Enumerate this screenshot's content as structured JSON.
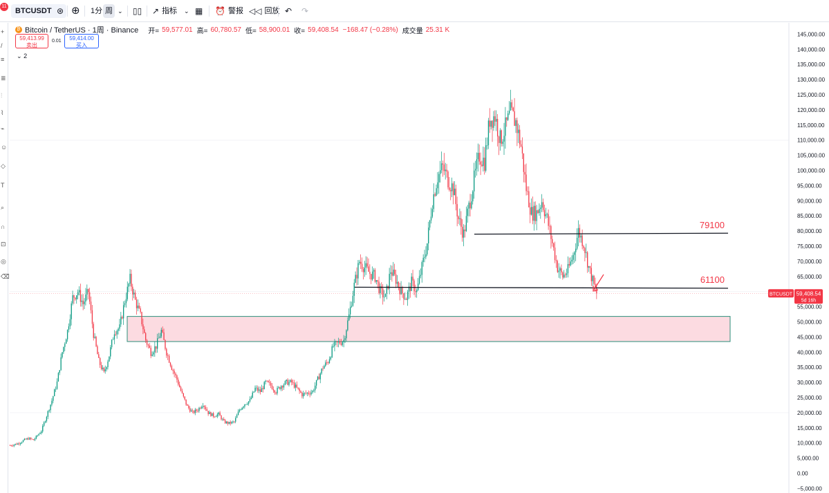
{
  "toolbar": {
    "notification_count": "11",
    "symbol": "BTCUSDT",
    "interval_1": "1分",
    "interval_2": "周",
    "indicators": "指标",
    "alert": "警报",
    "replay": "回放"
  },
  "legend": {
    "symbol_name": "Bitcoin / TetherUS · 1周 · Binance",
    "open_label": "开=",
    "open": "59,577.01",
    "high_label": "高=",
    "high": "60,780.57",
    "low_label": "低=",
    "low": "58,900.01",
    "close_label": "收=",
    "close": "59,408.54",
    "change": "−168.47 (−0.28%)",
    "volume_label": "成交量",
    "volume": "25.31 K"
  },
  "trade": {
    "sell_price": "59,413.99",
    "sell_label": "卖出",
    "spread": "0.01",
    "buy_price": "59,414.00",
    "buy_label": "买入"
  },
  "indicators_toggle": "2",
  "colors": {
    "up": "#089981",
    "down": "#f23645",
    "zone_fill": "#fcd7de",
    "zone_border": "#2b8f7a",
    "line": "#131722",
    "annotation": "#f23645"
  },
  "chart_data": {
    "type": "candlestick",
    "yaxis_ticks": [
      -5000,
      0,
      5000,
      10000,
      15000,
      20000,
      25000,
      30000,
      35000,
      40000,
      45000,
      50000,
      55000,
      60000,
      65000,
      70000,
      75000,
      80000,
      85000,
      90000,
      95000,
      100000,
      105000,
      110000,
      115000,
      120000,
      125000,
      130000,
      135000,
      140000,
      145000,
      150000
    ],
    "ylim": [
      -5500,
      152000
    ],
    "last_price": "59,408.54",
    "last_price_symbol": "BTCUSDT",
    "bar_countdown": "5d 16h",
    "levels": [
      {
        "label": "79100",
        "value": 79100
      },
      {
        "label": "61100",
        "value": 61100
      }
    ],
    "zone": {
      "low": 43500,
      "high": 51800
    },
    "price_path": [
      [
        0,
        9200
      ],
      [
        6,
        9800
      ],
      [
        10,
        10800
      ],
      [
        14,
        11500
      ],
      [
        18,
        11000
      ],
      [
        24,
        14000
      ],
      [
        28,
        19000
      ],
      [
        32,
        24000
      ],
      [
        36,
        30000
      ],
      [
        40,
        40000
      ],
      [
        44,
        47000
      ],
      [
        48,
        58000
      ],
      [
        52,
        60000
      ],
      [
        56,
        56000
      ],
      [
        60,
        60000
      ],
      [
        64,
        46000
      ],
      [
        68,
        37000
      ],
      [
        72,
        33000
      ],
      [
        76,
        39000
      ],
      [
        80,
        47000
      ],
      [
        84,
        48000
      ],
      [
        88,
        57000
      ],
      [
        92,
        64000
      ],
      [
        96,
        57000
      ],
      [
        100,
        52000
      ],
      [
        104,
        44000
      ],
      [
        108,
        40000
      ],
      [
        112,
        42000
      ],
      [
        116,
        47000
      ],
      [
        120,
        40000
      ],
      [
        124,
        35000
      ],
      [
        128,
        31000
      ],
      [
        132,
        26000
      ],
      [
        136,
        22000
      ],
      [
        140,
        20000
      ],
      [
        144,
        21000
      ],
      [
        148,
        23000
      ],
      [
        152,
        20000
      ],
      [
        156,
        19000
      ],
      [
        160,
        19500
      ],
      [
        164,
        17000
      ],
      [
        168,
        16500
      ],
      [
        172,
        17000
      ],
      [
        176,
        21000
      ],
      [
        180,
        23000
      ],
      [
        184,
        24000
      ],
      [
        188,
        28000
      ],
      [
        192,
        27000
      ],
      [
        196,
        30000
      ],
      [
        200,
        29000
      ],
      [
        204,
        27000
      ],
      [
        208,
        29000
      ],
      [
        212,
        30000
      ],
      [
        216,
        30000
      ],
      [
        220,
        28000
      ],
      [
        224,
        26000
      ],
      [
        228,
        26500
      ],
      [
        232,
        27000
      ],
      [
        236,
        31000
      ],
      [
        240,
        35000
      ],
      [
        244,
        37000
      ],
      [
        248,
        42000
      ],
      [
        252,
        43000
      ],
      [
        256,
        44000
      ],
      [
        260,
        52000
      ],
      [
        264,
        62000
      ],
      [
        268,
        70000
      ],
      [
        272,
        68000
      ],
      [
        276,
        66000
      ],
      [
        280,
        65000
      ],
      [
        284,
        60000
      ],
      [
        288,
        58000
      ],
      [
        292,
        67000
      ],
      [
        296,
        64000
      ],
      [
        300,
        60000
      ],
      [
        304,
        58000
      ],
      [
        308,
        63000
      ],
      [
        312,
        60000
      ],
      [
        316,
        68000
      ],
      [
        320,
        76000
      ],
      [
        324,
        90000
      ],
      [
        328,
        98000
      ],
      [
        332,
        101000
      ],
      [
        336,
        97000
      ],
      [
        340,
        94000
      ],
      [
        344,
        84000
      ],
      [
        348,
        79000
      ],
      [
        352,
        88000
      ],
      [
        356,
        97000
      ],
      [
        360,
        105000
      ],
      [
        364,
        103000
      ],
      [
        368,
        117000
      ],
      [
        372,
        118000
      ],
      [
        376,
        110000
      ],
      [
        380,
        114000
      ],
      [
        384,
        119000
      ],
      [
        388,
        116000
      ],
      [
        392,
        108000
      ],
      [
        396,
        94000
      ],
      [
        400,
        86000
      ],
      [
        404,
        86000
      ],
      [
        408,
        90000
      ],
      [
        412,
        84000
      ],
      [
        416,
        76000
      ],
      [
        420,
        68000
      ],
      [
        424,
        65000
      ],
      [
        428,
        67000
      ],
      [
        432,
        72000
      ],
      [
        436,
        80000
      ],
      [
        440,
        76000
      ],
      [
        444,
        68000
      ],
      [
        448,
        62000
      ],
      [
        450,
        59400
      ]
    ]
  }
}
